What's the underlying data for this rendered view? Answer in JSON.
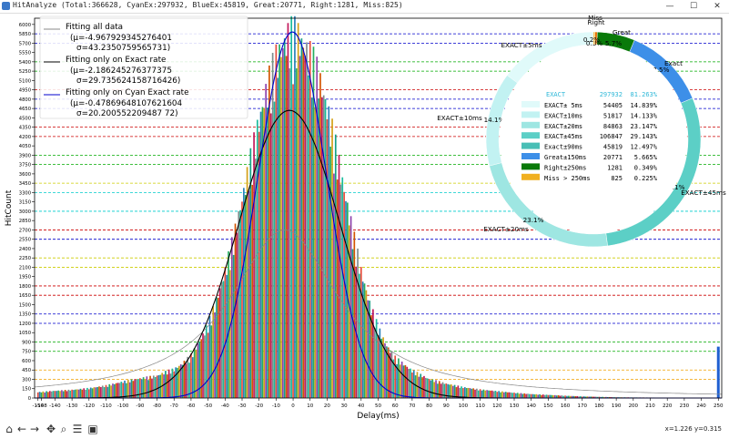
{
  "window": {
    "title": "HitAnalyze (Total:366628,  CyanEx:297932,  BlueEx:45819,  Great:20771,  Right:1281,  Miss:825)"
  },
  "toolbar": {
    "coords": "x=1.226 y=0.315",
    "icons": [
      "home-icon",
      "back-icon",
      "forward-icon",
      "pan-icon",
      "zoom-icon",
      "configure-icon",
      "save-icon"
    ]
  },
  "chart_data": [
    {
      "type": "bar",
      "xlabel": "Delay(ms)",
      "ylabel": "HitCount",
      "xlim": [
        -152,
        252
      ],
      "ylim": [
        0,
        6100
      ],
      "x_ticks": [
        -150,
        -148,
        -140,
        -130,
        -120,
        -110,
        -100,
        -90,
        -80,
        -70,
        -60,
        -50,
        -40,
        -30,
        -20,
        -10,
        0,
        10,
        20,
        30,
        40,
        50,
        60,
        70,
        80,
        90,
        100,
        110,
        120,
        130,
        140,
        150,
        160,
        170,
        180,
        190,
        200,
        210,
        220,
        230,
        240,
        250
      ],
      "y_ticks": [
        0,
        150,
        300,
        450,
        600,
        750,
        900,
        1050,
        1200,
        1350,
        1500,
        1650,
        1800,
        1950,
        2100,
        2250,
        2400,
        2550,
        2700,
        2850,
        3000,
        3150,
        3300,
        3450,
        3600,
        3750,
        3900,
        4050,
        4200,
        4350,
        4500,
        4650,
        4800,
        4950,
        5100,
        5250,
        5400,
        5550,
        5700,
        5850,
        6000
      ],
      "bin_ms": 1,
      "bar_colors": [
        "#e74c3c",
        "#2980b9",
        "#27ae60",
        "#d4a017",
        "#8e44ad",
        "#16a085",
        "#d35400",
        "#c2185b",
        "#7f8c8d",
        "#1abc9c"
      ],
      "histogram_centers": [
        -150,
        -140,
        -130,
        -120,
        -110,
        -100,
        -90,
        -80,
        -75,
        -70,
        -65,
        -60,
        -55,
        -50,
        -45,
        -40,
        -35,
        -30,
        -25,
        -20,
        -15,
        -10,
        -5,
        -3,
        0,
        3,
        5,
        10,
        15,
        20,
        25,
        30,
        35,
        40,
        45,
        50,
        55,
        60,
        65,
        70,
        80,
        90,
        100,
        110,
        120,
        130,
        140,
        150,
        160,
        170,
        180,
        190,
        200,
        220,
        250
      ],
      "histogram_values": [
        90,
        110,
        125,
        150,
        190,
        250,
        300,
        340,
        400,
        440,
        530,
        650,
        870,
        1120,
        1500,
        1950,
        2450,
        3050,
        3650,
        4250,
        4800,
        5200,
        5450,
        5550,
        5600,
        5550,
        5450,
        5250,
        4950,
        4450,
        3850,
        3200,
        2550,
        1950,
        1450,
        1080,
        800,
        620,
        520,
        420,
        290,
        220,
        165,
        130,
        105,
        80,
        60,
        48,
        35,
        25,
        18,
        12,
        9,
        6,
        3
      ],
      "spike": {
        "x": 250,
        "value": 825
      },
      "fits": [
        {
          "name": "Fitting all data",
          "mu_label": "(μ=-4.967929345276401",
          "sigma_label": "σ=43.2350759565731)",
          "mu": -4.967929345276401,
          "sigma": 43.2350759565731,
          "shape": "cauchy",
          "peak": 2700,
          "color": "#888888"
        },
        {
          "name": "Fitting only on Exact rate",
          "mu_label": "(μ=-2.186245276377375",
          "sigma_label": "σ=29.735624158716426)",
          "mu": -2.186245276377375,
          "sigma": 29.735624158716426,
          "shape": "gauss",
          "peak": 4620,
          "color": "#000000"
        },
        {
          "name": "Fitting only on Cyan Exact rate",
          "mu_label": "(μ=-0.47869648107621604",
          "sigma_label": "σ=20.200552209487 72)",
          "mu": -0.47869648107621604,
          "sigma": 20.20055220948772,
          "shape": "gauss",
          "peak": 5880,
          "color": "#0000cc"
        }
      ],
      "hlines": [
        {
          "y": 4800,
          "color": "#0000cc"
        },
        {
          "y": 4650,
          "color": "#0000cc"
        },
        {
          "y": 4350,
          "color": "#cc0000"
        },
        {
          "y": 4200,
          "color": "#cc0000"
        },
        {
          "y": 3900,
          "color": "#00aa00"
        },
        {
          "y": 3750,
          "color": "#00aa00"
        },
        {
          "y": 3450,
          "color": "#cccc00"
        },
        {
          "y": 3300,
          "color": "#00cccc"
        },
        {
          "y": 3000,
          "color": "#00cccc"
        },
        {
          "y": 2700,
          "color": "#cc0000"
        },
        {
          "y": 2550,
          "color": "#0000cc"
        },
        {
          "y": 2250,
          "color": "#cccc00"
        },
        {
          "y": 2100,
          "color": "#cccc00"
        },
        {
          "y": 1800,
          "color": "#cc0000"
        },
        {
          "y": 1650,
          "color": "#cc0000"
        },
        {
          "y": 1350,
          "color": "#0000cc"
        },
        {
          "y": 1200,
          "color": "#0000cc"
        },
        {
          "y": 900,
          "color": "#00aa00"
        },
        {
          "y": 750,
          "color": "#00aa00"
        },
        {
          "y": 450,
          "color": "#f0a000"
        },
        {
          "y": 300,
          "color": "#f0a000"
        },
        {
          "y": 5850,
          "color": "#0000cc"
        },
        {
          "y": 5700,
          "color": "#0000cc"
        },
        {
          "y": 5400,
          "color": "#00aa00"
        },
        {
          "y": 5250,
          "color": "#00aa00"
        },
        {
          "y": 4950,
          "color": "#cc0000"
        }
      ]
    },
    {
      "type": "pie",
      "style": "donut",
      "slices": [
        {
          "label": "EXACT±5ms",
          "value": 54405,
          "percent": "14.8%",
          "color": "#e0fafa"
        },
        {
          "label": "EXACT±10ms",
          "value": 51817,
          "percent": "14.1%",
          "color": "#c2f2f2"
        },
        {
          "label": "EXACT±20ms",
          "value": 84863,
          "percent": "23.1%",
          "color": "#9ee6e2"
        },
        {
          "label": "EXACT±45ms",
          "value": 106847,
          "percent": "29.1%",
          "color": "#5ccfc6"
        },
        {
          "label": "Exact",
          "value": 45819,
          "percent": "12.5%",
          "color": "#3d8fe8"
        },
        {
          "label": "Great",
          "value": 20771,
          "percent": "5.7%",
          "color": "#0a7a0a"
        },
        {
          "label": "Right",
          "value": 1281,
          "percent": "0.3%",
          "color": "#e87000"
        },
        {
          "label": "Miss",
          "value": 825,
          "percent": "0.2%",
          "color": "#f0b020"
        }
      ],
      "table": {
        "header": [
          "EXACT",
          "297932",
          "81.263%"
        ],
        "rows": [
          {
            "color": "#e0fafa",
            "label": "EXACT± 5ms",
            "count": "54405",
            "pct": "14.839%"
          },
          {
            "color": "#c2f2f2",
            "label": "EXACT±10ms",
            "count": "51817",
            "pct": "14.133%"
          },
          {
            "color": "#9ee6e2",
            "label": "EXACT±20ms",
            "count": "84863",
            "pct": "23.147%"
          },
          {
            "color": "#5ccfc6",
            "label": "EXACT±45ms",
            "count": "106847",
            "pct": "29.143%"
          },
          {
            "color": "#49bfb6",
            "label": "Exact±90ms",
            "count": "45819",
            "pct": "12.497%"
          },
          {
            "color": "#3d8fe8",
            "label": "Great±150ms",
            "count": "20771",
            "pct": "5.665%"
          },
          {
            "color": "#0a7a0a",
            "label": "Right±250ms",
            "count": "1281",
            "pct": "0.349%"
          },
          {
            "color": "#f0b020",
            "label": "Miss > 250ms",
            "count": "825",
            "pct": "0.225%"
          }
        ]
      }
    }
  ]
}
